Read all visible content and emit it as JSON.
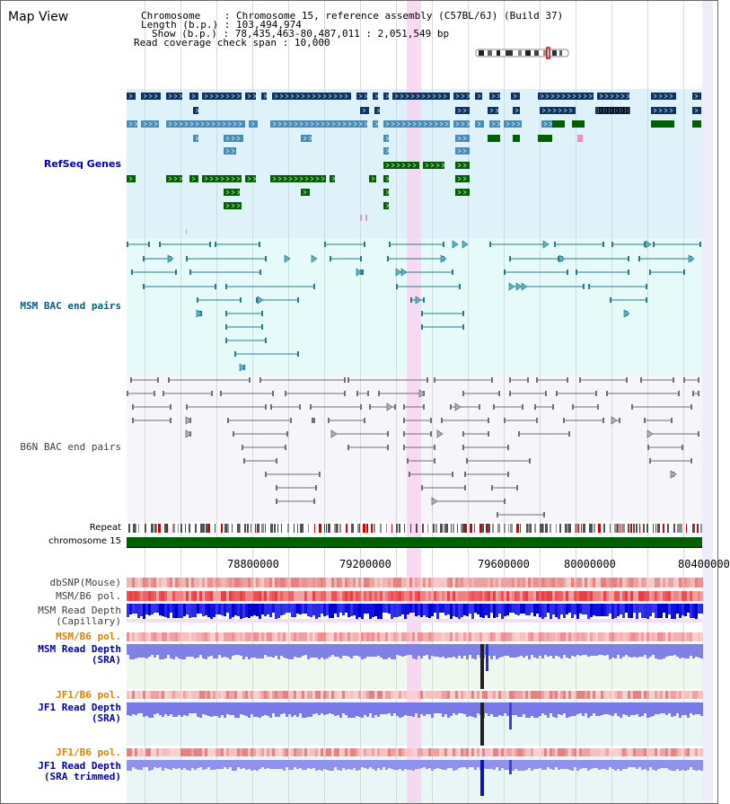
{
  "view": {
    "title": "Map View",
    "info": [
      {
        "key": "Chromosome",
        "value": "Chromosome 15, reference assembly (C57BL/6J) (Build 37)"
      },
      {
        "key": "Length (b.p.)",
        "value": "103,494,974"
      },
      {
        "key": "Show (b.p.)",
        "value": "78,435,463-80,487,011 : 2,051,549 bp"
      },
      {
        "key": "Read coverage check span",
        "value": "10,000"
      }
    ]
  },
  "tracks": {
    "refseq": "RefSeq Genes",
    "msm_bac": "MSM BAC end pairs",
    "b6n_bac": "B6N BAC end pairs",
    "repeat": "Repeat",
    "chromosome": "chromosome 15",
    "dbsnp": "dbSNP(Mouse)",
    "msm_b6_pol": "MSM/B6 pol.",
    "msm_depth_cap": "MSM Read Depth",
    "msm_depth_cap_sub": "(Capillary)",
    "msm_b6_pol2": "MSM/B6 pol.",
    "msm_depth_sra": "MSM Read Depth",
    "msm_depth_sra_sub": "(SRA)",
    "jf1_b6_pol": "JF1/B6 pol.",
    "jf1_depth_sra": "JF1 Read Depth",
    "jf1_depth_sra_sub": "(SRA)",
    "jf1_b6_pol2": "JF1/B6 pol.",
    "jf1_depth_trim": "JF1 Read Depth",
    "jf1_depth_trim_sub": "(SRA trimmed)"
  },
  "axis": {
    "ticks": [
      "78800000",
      "79200000",
      "79600000",
      "80000000",
      "80400000"
    ]
  },
  "colors": {
    "refseq_label": "#0000aa",
    "msm_label": "#006080",
    "b6n_label": "#404040",
    "orange_label": "#e08000",
    "blue_label": "#0000aa",
    "highlight": "#f7d4f0"
  }
}
